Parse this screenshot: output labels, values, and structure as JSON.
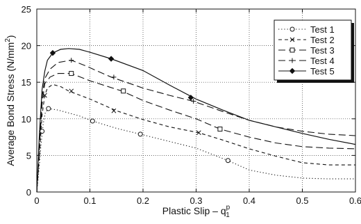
{
  "chart_data": {
    "type": "line",
    "xlabel": "Plastic Slip – q",
    "xlabel_sup": "p",
    "xlabel_sub": "1",
    "ylabel_main": "Average Bond Stress (N/mm",
    "ylabel_sup": "2",
    "ylabel_close": ")",
    "xlim": [
      0,
      0.6
    ],
    "ylim": [
      0,
      25
    ],
    "x_ticks": [
      0,
      0.1,
      0.2,
      0.3,
      0.4,
      0.5,
      0.6
    ],
    "x_tick_labels": [
      "0",
      "0.1",
      "0.2",
      "0.3",
      "0.4",
      "0.5",
      "0.6"
    ],
    "y_ticks": [
      0,
      5,
      10,
      15,
      20,
      25
    ],
    "y_tick_labels": [
      "0",
      "5",
      "10",
      "15",
      "20",
      "25"
    ],
    "grid": true,
    "legend_position": "top-right",
    "series": [
      {
        "name": "Test 1",
        "marker": "circle",
        "dash": "dotted",
        "points": [
          [
            0,
            0
          ],
          [
            0.004,
            3
          ],
          [
            0.008,
            6.5
          ],
          [
            0.012,
            9.3
          ],
          [
            0.016,
            10.8
          ],
          [
            0.022,
            11.4
          ],
          [
            0.04,
            11.2
          ],
          [
            0.06,
            10.8
          ],
          [
            0.08,
            10.4
          ],
          [
            0.105,
            9.7
          ],
          [
            0.15,
            8.7
          ],
          [
            0.195,
            7.9
          ],
          [
            0.25,
            6.9
          ],
          [
            0.3,
            6.0
          ],
          [
            0.36,
            4.3
          ],
          [
            0.4,
            3.0
          ],
          [
            0.45,
            2.3
          ],
          [
            0.5,
            1.9
          ],
          [
            0.55,
            1.8
          ],
          [
            0.6,
            1.8
          ]
        ],
        "markers": [
          [
            0.01,
            8.3
          ],
          [
            0.022,
            11.4
          ],
          [
            0.105,
            9.7
          ],
          [
            0.195,
            7.9
          ],
          [
            0.36,
            4.3
          ]
        ]
      },
      {
        "name": "Test 2",
        "marker": "x",
        "dash": "short-dash",
        "points": [
          [
            0,
            0
          ],
          [
            0.005,
            5
          ],
          [
            0.01,
            10.5
          ],
          [
            0.015,
            13.2
          ],
          [
            0.02,
            14.2
          ],
          [
            0.03,
            14.7
          ],
          [
            0.045,
            14.4
          ],
          [
            0.06,
            13.8
          ],
          [
            0.1,
            12.7
          ],
          [
            0.15,
            11.1
          ],
          [
            0.2,
            9.9
          ],
          [
            0.25,
            8.9
          ],
          [
            0.305,
            8.1
          ],
          [
            0.35,
            7.1
          ],
          [
            0.4,
            5.9
          ],
          [
            0.45,
            4.9
          ],
          [
            0.5,
            4.0
          ],
          [
            0.55,
            3.7
          ],
          [
            0.6,
            3.7
          ]
        ],
        "markers": [
          [
            0.015,
            13.2
          ],
          [
            0.065,
            13.8
          ],
          [
            0.145,
            11.1
          ],
          [
            0.305,
            8.1
          ]
        ]
      },
      {
        "name": "Test 3",
        "marker": "square",
        "dash": "long-dash",
        "points": [
          [
            0,
            0
          ],
          [
            0.005,
            6
          ],
          [
            0.01,
            12
          ],
          [
            0.015,
            14.8
          ],
          [
            0.025,
            15.7
          ],
          [
            0.04,
            16.2
          ],
          [
            0.065,
            16.2
          ],
          [
            0.1,
            15.2
          ],
          [
            0.16,
            13.8
          ],
          [
            0.2,
            12.5
          ],
          [
            0.25,
            11.2
          ],
          [
            0.3,
            10.0
          ],
          [
            0.345,
            8.6
          ],
          [
            0.4,
            7.5
          ],
          [
            0.45,
            6.7
          ],
          [
            0.5,
            6.2
          ],
          [
            0.55,
            6.0
          ],
          [
            0.6,
            5.9
          ]
        ],
        "markers": [
          [
            0.065,
            16.2
          ],
          [
            0.163,
            13.8
          ],
          [
            0.345,
            8.6
          ]
        ]
      },
      {
        "name": "Test 4",
        "marker": "plus",
        "dash": "long-dash",
        "points": [
          [
            0,
            0
          ],
          [
            0.005,
            7
          ],
          [
            0.01,
            13
          ],
          [
            0.015,
            15.5
          ],
          [
            0.025,
            16.8
          ],
          [
            0.04,
            17.7
          ],
          [
            0.065,
            18
          ],
          [
            0.09,
            17.3
          ],
          [
            0.14,
            15.7
          ],
          [
            0.2,
            14.2
          ],
          [
            0.25,
            13.2
          ],
          [
            0.295,
            12.4
          ],
          [
            0.35,
            11.0
          ],
          [
            0.4,
            9.8
          ],
          [
            0.45,
            8.9
          ],
          [
            0.5,
            8.3
          ],
          [
            0.55,
            7.9
          ],
          [
            0.6,
            7.7
          ]
        ],
        "markers": [
          [
            0.065,
            18
          ],
          [
            0.145,
            15.7
          ],
          [
            0.295,
            12.4
          ]
        ]
      },
      {
        "name": "Test 5",
        "marker": "diamond",
        "dash": "solid",
        "points": [
          [
            0,
            0
          ],
          [
            0.005,
            8
          ],
          [
            0.01,
            14
          ],
          [
            0.015,
            16.5
          ],
          [
            0.02,
            18
          ],
          [
            0.03,
            19
          ],
          [
            0.045,
            19.5
          ],
          [
            0.06,
            19.6
          ],
          [
            0.08,
            19.5
          ],
          [
            0.1,
            19.1
          ],
          [
            0.14,
            18.2
          ],
          [
            0.2,
            16.6
          ],
          [
            0.25,
            14.6
          ],
          [
            0.3,
            12.7
          ],
          [
            0.35,
            11.2
          ],
          [
            0.4,
            9.8
          ],
          [
            0.45,
            8.9
          ],
          [
            0.5,
            8.0
          ],
          [
            0.55,
            7.2
          ],
          [
            0.6,
            6.5
          ]
        ],
        "markers": [
          [
            0.03,
            19
          ],
          [
            0.14,
            18.2
          ],
          [
            0.29,
            12.9
          ]
        ]
      }
    ]
  }
}
